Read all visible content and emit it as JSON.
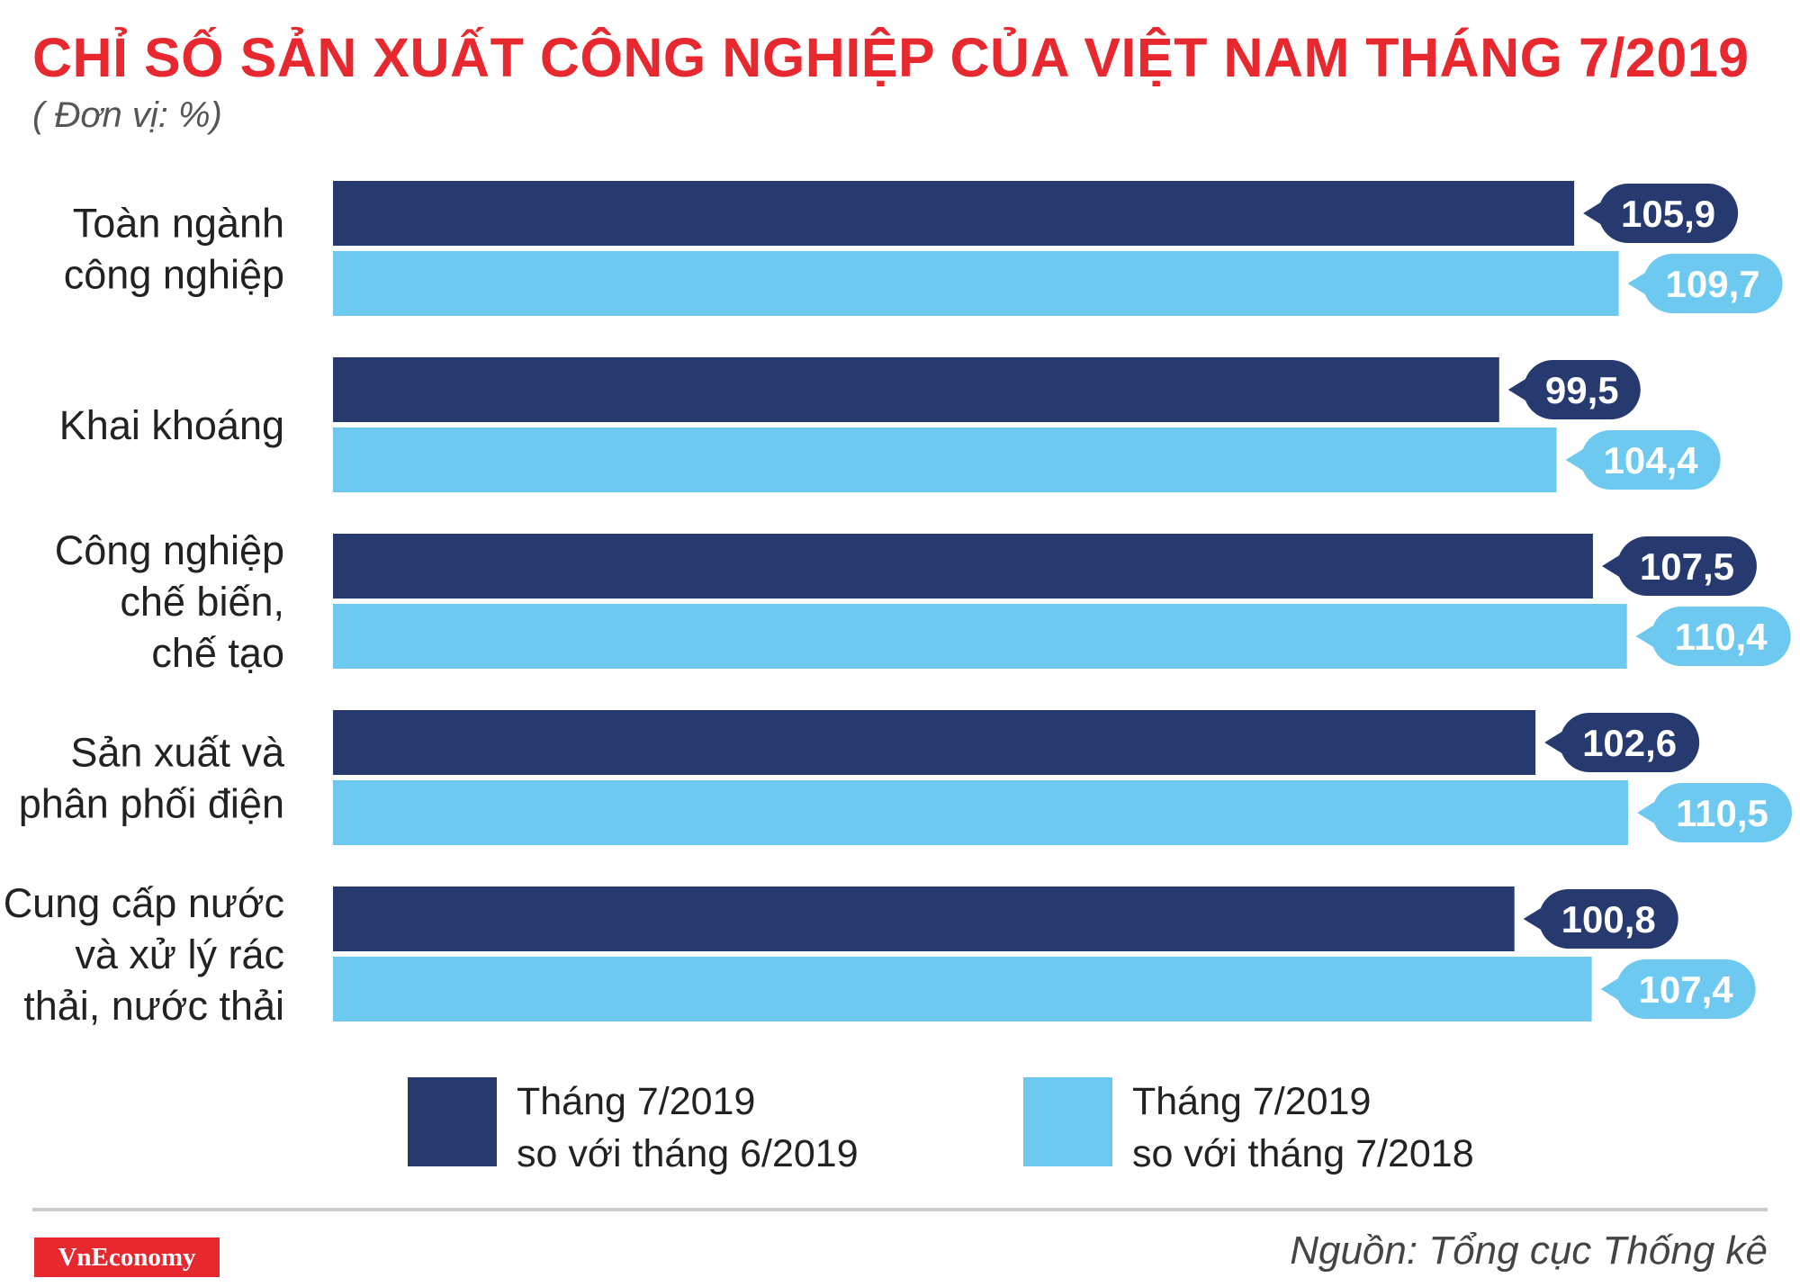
{
  "title": "CHỈ SỐ SẢN XUẤT CÔNG NGHIỆP CỦA VIỆT NAM THÁNG 7/2019",
  "unit": "( Đơn vị: %)",
  "colors": {
    "title": "#e8282f",
    "series1": "#263a70",
    "series2": "#6ec9f0"
  },
  "legend": [
    {
      "line1": "Tháng 7/2019",
      "line2": "so với tháng 6/2019"
    },
    {
      "line1": "Tháng 7/2019",
      "line2": "so với tháng 7/2018"
    }
  ],
  "source": "Nguồn: Tổng cục Thống kê",
  "logo": "VnEconomy",
  "chart_data": {
    "type": "bar",
    "orientation": "horizontal",
    "categories": [
      [
        "Toàn ngành",
        "công nghiệp"
      ],
      [
        "Khai khoáng"
      ],
      [
        "Công nghiệp",
        "chế biến,",
        "chế tạo"
      ],
      [
        "Sản xuất và",
        "phân phối điện"
      ],
      [
        "Cung cấp nước",
        "và xử lý rác",
        "thải, nước thải"
      ]
    ],
    "series": [
      {
        "name": "Tháng 7/2019 so với tháng 6/2019",
        "values": [
          105.9,
          99.5,
          107.5,
          102.6,
          100.8
        ],
        "labels": [
          "105,9",
          "99,5",
          "107,5",
          "102,6",
          "100,8"
        ]
      },
      {
        "name": "Tháng 7/2019 so với tháng 7/2018",
        "values": [
          109.7,
          104.4,
          110.4,
          110.5,
          107.4
        ],
        "labels": [
          "109,7",
          "104,4",
          "110,4",
          "110,5",
          "107,4"
        ]
      }
    ],
    "xlim": [
      0,
      110.5
    ],
    "grid": false,
    "legend_position": "bottom"
  }
}
